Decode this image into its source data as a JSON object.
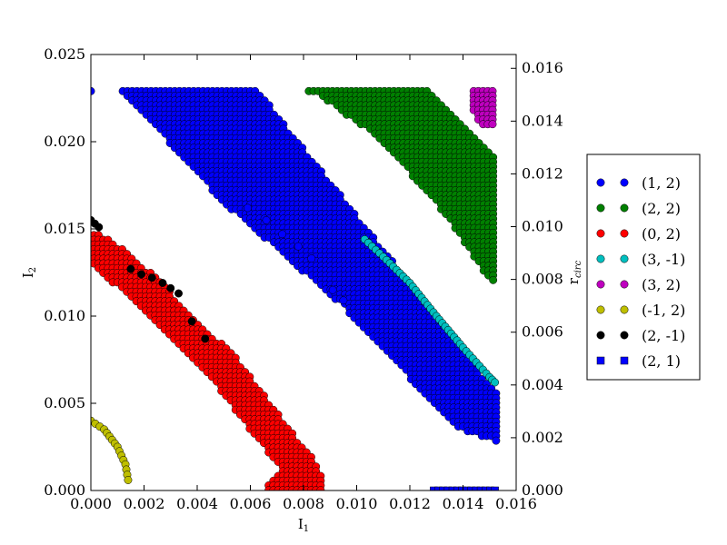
{
  "chart_data": {
    "type": "scatter",
    "xlabel": "I",
    "xlabel_sub": "1",
    "ylabel": "I",
    "ylabel_sub": "2",
    "y2label": "r",
    "y2label_sub": "circ",
    "xlim": [
      0.0,
      0.016
    ],
    "ylim": [
      0.0,
      0.025
    ],
    "y2lim": [
      0.0,
      0.016525
    ],
    "xticks": [
      "0.000",
      "0.002",
      "0.004",
      "0.006",
      "0.008",
      "0.010",
      "0.012",
      "0.014",
      "0.016"
    ],
    "yticks": [
      "0.000",
      "0.005",
      "0.010",
      "0.015",
      "0.020",
      "0.025"
    ],
    "y2ticks": [
      "0.000",
      "0.002",
      "0.004",
      "0.006",
      "0.008",
      "0.010",
      "0.012",
      "0.014",
      "0.016"
    ],
    "grid": false,
    "legend_position": "outside-right",
    "series": [
      {
        "name": "(1, 2)",
        "color": "#0000ff",
        "marker": "circle",
        "region": {
          "kind": "polygon",
          "pts": [
            [
              0.0013,
              0.0229
            ],
            [
              0.0063,
              0.0229
            ],
            [
              0.0153,
              0.0055
            ],
            [
              0.0153,
              0.0028
            ],
            [
              0.0138,
              0.0035
            ],
            [
              0.0094,
              0.0107
            ],
            [
              0.005,
              0.0165
            ],
            [
              0.0012,
              0.0229
            ]
          ]
        },
        "extra_points": [
          [
            0.0,
            0.0229
          ],
          [
            0.0059,
            0.0162
          ],
          [
            0.0066,
            0.0155
          ],
          [
            0.0072,
            0.0147
          ],
          [
            0.0078,
            0.014
          ],
          [
            0.0083,
            0.0133
          ],
          [
            0.0091,
            0.0115
          ],
          [
            0.0095,
            0.0109
          ]
        ]
      },
      {
        "name": "(2, 2)",
        "color": "#008000",
        "marker": "circle",
        "region": {
          "kind": "polygon",
          "pts": [
            [
              0.0082,
              0.0229
            ],
            [
              0.0127,
              0.0229
            ],
            [
              0.0153,
              0.019
            ],
            [
              0.0153,
              0.0118
            ],
            [
              0.0148,
              0.0125
            ],
            [
              0.0135,
              0.0155
            ],
            [
              0.011,
              0.02
            ],
            [
              0.0085,
              0.0228
            ]
          ]
        },
        "extra_points": []
      },
      {
        "name": "(0, 2)",
        "color": "#ff0000",
        "marker": "circle",
        "region": {
          "kind": "band",
          "pts": [
            [
              0.0,
              0.014
            ],
            [
              0.001,
              0.0129
            ],
            [
              0.002,
              0.0116
            ],
            [
              0.003,
              0.01
            ],
            [
              0.004,
              0.0085
            ],
            [
              0.005,
              0.007
            ],
            [
              0.006,
              0.005
            ],
            [
              0.007,
              0.003
            ],
            [
              0.0078,
              0.0014
            ],
            [
              0.0082,
              0.0002
            ],
            [
              0.0072,
              0.0
            ]
          ],
          "half_width": 0.0006
        },
        "extra_points": []
      },
      {
        "name": "(3, -1)",
        "color": "#00bfbf",
        "marker": "circle",
        "region": {
          "kind": "line",
          "pts": [
            [
              0.0103,
              0.0144
            ],
            [
              0.011,
              0.0134
            ],
            [
              0.012,
              0.0119
            ],
            [
              0.013,
              0.01
            ],
            [
              0.014,
              0.0082
            ],
            [
              0.015,
              0.0065
            ],
            [
              0.0152,
              0.0062
            ]
          ]
        },
        "extra_points": []
      },
      {
        "name": "(3, 2)",
        "color": "#bf00bf",
        "marker": "circle",
        "region": {
          "kind": "polygon",
          "pts": [
            [
              0.0144,
              0.0229
            ],
            [
              0.0152,
              0.0229
            ],
            [
              0.0152,
              0.021
            ],
            [
              0.0148,
              0.0206
            ],
            [
              0.0144,
              0.0218
            ]
          ]
        },
        "extra_points": []
      },
      {
        "name": "(-1, 2)",
        "color": "#bfbf00",
        "marker": "circle",
        "region": {
          "kind": "line",
          "pts": [
            [
              0.0,
              0.004
            ],
            [
              0.0005,
              0.0035
            ],
            [
              0.001,
              0.0025
            ],
            [
              0.0013,
              0.0015
            ],
            [
              0.0014,
              0.0006
            ]
          ]
        },
        "extra_points": []
      },
      {
        "name": "(2, -1)",
        "color": "#000000",
        "marker": "circle",
        "region": {
          "kind": "line",
          "pts": [
            [
              0.0,
              0.0155
            ],
            [
              0.0003,
              0.0151
            ],
            [
              0.0
            ]
          ]
        },
        "extra_points": [
          [
            0.0015,
            0.0127
          ],
          [
            0.0019,
            0.0124
          ],
          [
            0.0023,
            0.0122
          ],
          [
            0.0027,
            0.0119
          ],
          [
            0.003,
            0.0116
          ],
          [
            0.0033,
            0.0113
          ],
          [
            0.0038,
            0.0097
          ],
          [
            0.0043,
            0.0087
          ]
        ]
      },
      {
        "name": "(2, 1)",
        "color": "#0000ff",
        "marker": "square",
        "region": {
          "kind": "line",
          "pts": [
            [
              0.0129,
              0.0
            ],
            [
              0.0152,
              0.0
            ]
          ]
        },
        "extra_points": []
      }
    ]
  }
}
